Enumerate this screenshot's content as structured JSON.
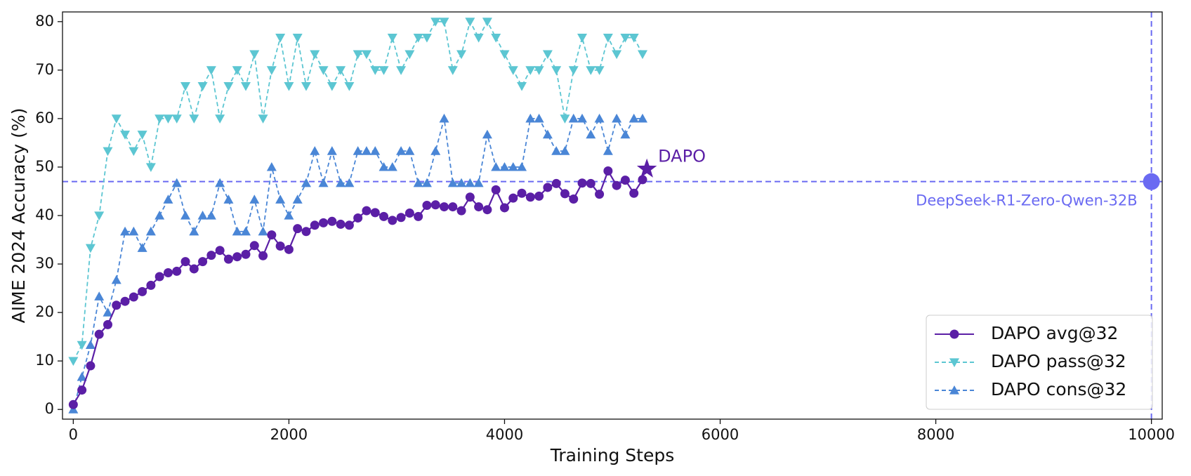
{
  "chart_data": {
    "type": "line",
    "xlabel": "Training Steps",
    "ylabel": "AIME 2024 Accuracy (%)",
    "x": [
      0,
      80,
      160,
      240,
      320,
      400,
      480,
      560,
      640,
      720,
      800,
      880,
      960,
      1040,
      1120,
      1200,
      1280,
      1360,
      1440,
      1520,
      1600,
      1680,
      1760,
      1840,
      1920,
      2000,
      2080,
      2160,
      2240,
      2320,
      2400,
      2480,
      2560,
      2640,
      2720,
      2800,
      2880,
      2960,
      3040,
      3120,
      3200,
      3280,
      3360,
      3440,
      3520,
      3600,
      3680,
      3760,
      3840,
      3920,
      4000,
      4080,
      4160,
      4240,
      4320,
      4400,
      4480,
      4560,
      4640,
      4720,
      4800,
      4880,
      4960,
      5040,
      5120,
      5200,
      5280
    ],
    "series": [
      {
        "name": "DAPO avg@32",
        "color": "#5b1fa6",
        "marker": "circle",
        "linestyle": "solid",
        "values": [
          1,
          4,
          9,
          15.5,
          17.5,
          21.5,
          22.3,
          23.2,
          24.3,
          25.6,
          27.4,
          28.2,
          28.5,
          30.5,
          29,
          30.5,
          31.8,
          32.8,
          31,
          31.5,
          32,
          33.8,
          31.7,
          36,
          33.7,
          33,
          37.3,
          36.7,
          38,
          38.5,
          38.8,
          38.2,
          38,
          39.5,
          41,
          40.6,
          39.8,
          39,
          39.6,
          40.5,
          39.8,
          42.1,
          42.2,
          41.8,
          41.8,
          41,
          43.8,
          41.8,
          41.2,
          45.3,
          41.6,
          43.6,
          44.6,
          43.8,
          44,
          45.8,
          46.6,
          44.5,
          43.4,
          46.7,
          46.6,
          44.4,
          49.2,
          46.2,
          47.3,
          44.6,
          47.4
        ]
      },
      {
        "name": "DAPO pass@32",
        "color": "#5cc6d2",
        "marker": "triangle-down",
        "linestyle": "dashed",
        "values": [
          10,
          13.3,
          33.3,
          40,
          53.3,
          60,
          56.7,
          53.3,
          56.7,
          50,
          60,
          60,
          60,
          66.7,
          60,
          66.7,
          70,
          60,
          66.7,
          70,
          66.7,
          73.3,
          60,
          70,
          76.7,
          66.7,
          76.7,
          66.7,
          73.3,
          70,
          66.7,
          70,
          66.7,
          73.3,
          73.3,
          70,
          70,
          76.7,
          70,
          73.3,
          76.7,
          76.7,
          80,
          80,
          70,
          73.3,
          80,
          76.7,
          80,
          76.7,
          73.3,
          70,
          66.7,
          70,
          70,
          73.3,
          70,
          60,
          70,
          76.7,
          70,
          70,
          76.7,
          73.3,
          76.7,
          76.7,
          73.3
        ]
      },
      {
        "name": "DAPO cons@32",
        "color": "#4a86d6",
        "marker": "triangle-up",
        "linestyle": "dashed",
        "values": [
          0,
          6.7,
          13.3,
          23.3,
          20,
          26.7,
          36.7,
          36.7,
          33.3,
          36.7,
          40,
          43.3,
          46.7,
          40,
          36.7,
          40,
          40,
          46.7,
          43.3,
          36.7,
          36.7,
          43.3,
          36.7,
          50,
          43.3,
          40,
          43.3,
          46.7,
          53.3,
          46.7,
          53.3,
          46.7,
          46.7,
          53.3,
          53.3,
          53.3,
          50,
          50,
          53.3,
          53.3,
          46.7,
          46.7,
          53.3,
          60,
          46.7,
          46.7,
          46.7,
          46.7,
          56.7,
          50,
          50,
          50,
          50,
          60,
          60,
          56.7,
          53.3,
          53.3,
          60,
          60,
          56.7,
          60,
          53.3,
          60,
          56.7,
          60,
          60
        ]
      }
    ],
    "highlight": {
      "label": "DAPO",
      "x": 5320,
      "y": 49.6,
      "color": "#5b1fa6"
    },
    "reference": {
      "label": "DeepSeek-R1-Zero-Qwen-32B",
      "x": 10000,
      "y": 47,
      "color": "#6a6af2"
    },
    "xlim": [
      -100,
      10100
    ],
    "ylim": [
      -2,
      82
    ],
    "xticks": [
      0,
      2000,
      4000,
      6000,
      8000,
      10000
    ],
    "yticks": [
      0,
      10,
      20,
      30,
      40,
      50,
      60,
      70,
      80
    ],
    "grid": false,
    "legend": "lower right"
  }
}
